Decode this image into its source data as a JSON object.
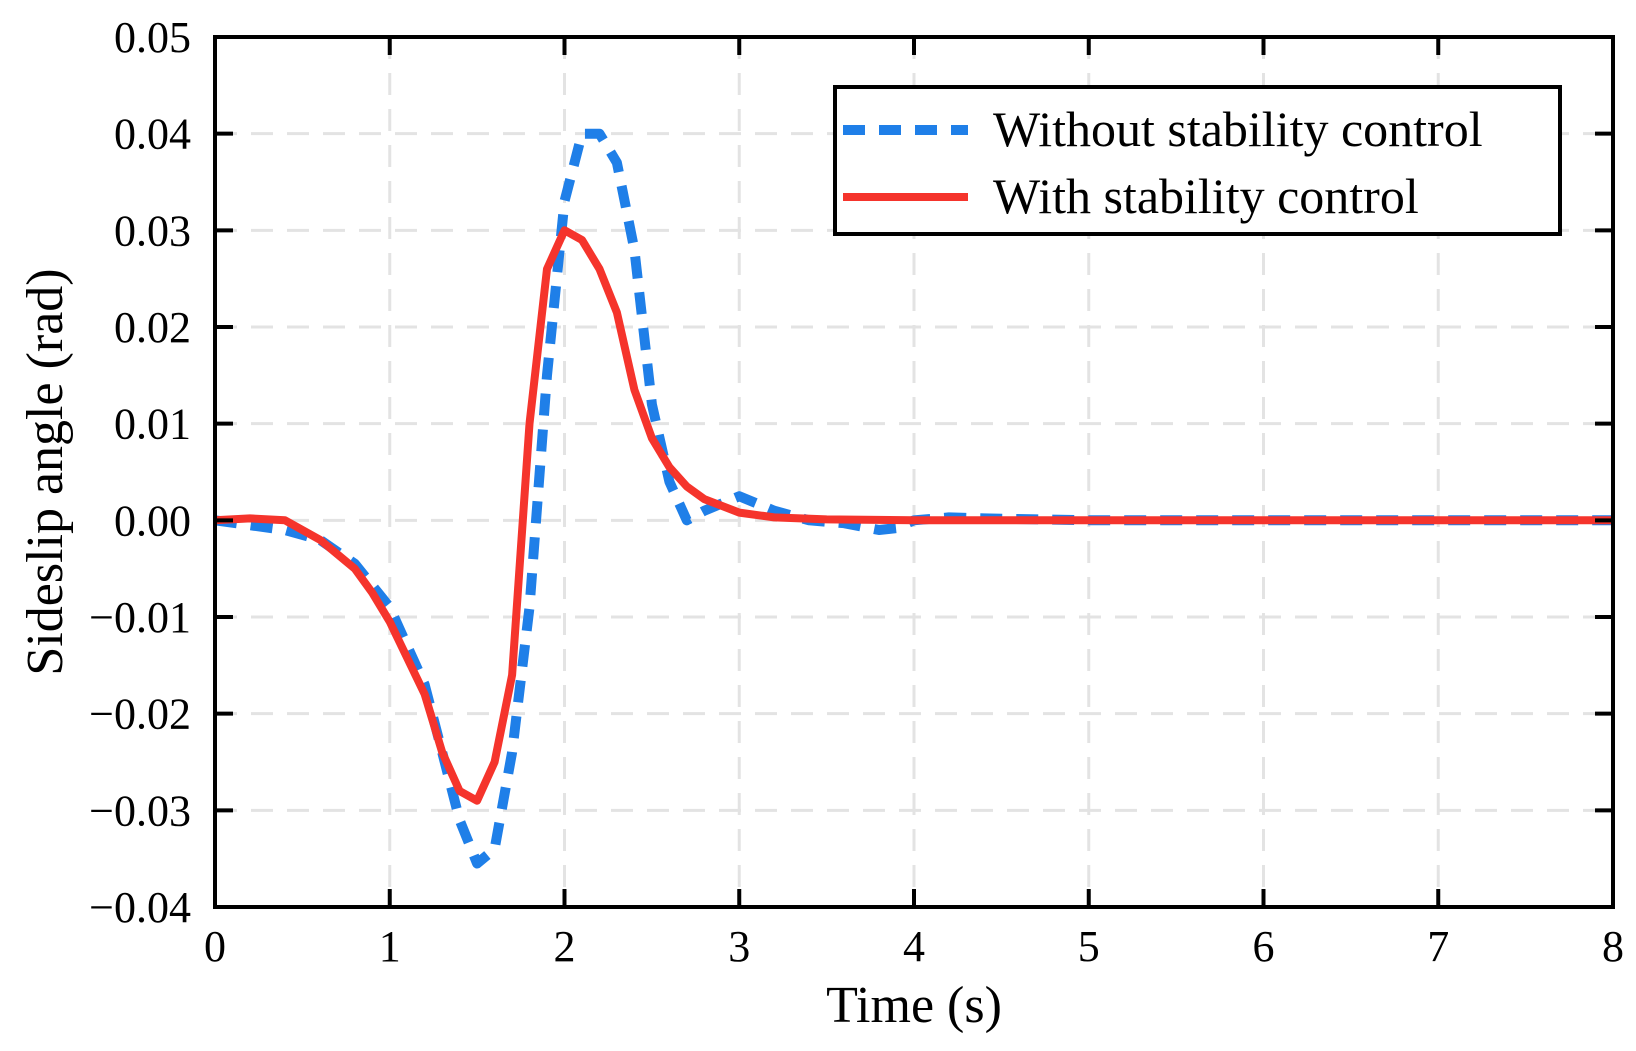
{
  "chart_data": {
    "type": "line",
    "title": "",
    "xlabel": "Time (s)",
    "ylabel": "Sideslip angle (rad)",
    "xlim": [
      0,
      8
    ],
    "ylim": [
      -0.04,
      0.05
    ],
    "x_ticks": [
      0,
      1,
      2,
      3,
      4,
      5,
      6,
      7,
      8
    ],
    "x_tick_labels": [
      "0",
      "1",
      "2",
      "3",
      "4",
      "5",
      "6",
      "7",
      "8"
    ],
    "y_ticks": [
      -0.04,
      -0.03,
      -0.02,
      -0.01,
      0.0,
      0.01,
      0.02,
      0.03,
      0.04,
      0.05
    ],
    "y_tick_labels": [
      "−0.04",
      "−0.03",
      "−0.02",
      "−0.01",
      "0.00",
      "0.01",
      "0.02",
      "0.03",
      "0.04",
      "0.05"
    ],
    "grid": true,
    "legend_position": "top-right",
    "series": [
      {
        "name": "Without stability control",
        "color": "#1f7fe8",
        "style": "dashed",
        "x": [
          0,
          0.2,
          0.4,
          0.6,
          0.8,
          1.0,
          1.2,
          1.3,
          1.4,
          1.5,
          1.6,
          1.7,
          1.8,
          1.9,
          2.0,
          2.1,
          2.2,
          2.3,
          2.4,
          2.5,
          2.6,
          2.7,
          2.8,
          3.0,
          3.2,
          3.4,
          3.6,
          3.8,
          3.9,
          4.0,
          4.2,
          4.4,
          5.0,
          6.0,
          7.0,
          8.0
        ],
        "y": [
          0.0,
          -0.0005,
          -0.001,
          -0.002,
          -0.0045,
          -0.009,
          -0.017,
          -0.024,
          -0.031,
          -0.0355,
          -0.034,
          -0.024,
          -0.009,
          0.015,
          0.033,
          0.04,
          0.04,
          0.037,
          0.028,
          0.012,
          0.004,
          0.0,
          0.001,
          0.0025,
          0.001,
          0.0,
          -0.0003,
          -0.001,
          -0.0008,
          0.0,
          0.0003,
          0.0002,
          0.0,
          0.0,
          0.0,
          0.0
        ]
      },
      {
        "name": "With stability control",
        "color": "#f5342c",
        "style": "solid",
        "x": [
          0,
          0.2,
          0.4,
          0.6,
          0.8,
          0.9,
          1.0,
          1.2,
          1.3,
          1.4,
          1.5,
          1.6,
          1.7,
          1.8,
          1.9,
          2.0,
          2.1,
          2.2,
          2.3,
          2.4,
          2.5,
          2.6,
          2.7,
          2.8,
          3.0,
          3.2,
          3.5,
          4.0,
          5.0,
          6.0,
          7.0,
          8.0
        ],
        "y": [
          0.0,
          0.0002,
          0.0,
          -0.002,
          -0.005,
          -0.0075,
          -0.0105,
          -0.018,
          -0.024,
          -0.028,
          -0.029,
          -0.025,
          -0.016,
          0.01,
          0.026,
          0.03,
          0.029,
          0.026,
          0.0215,
          0.0135,
          0.0085,
          0.0055,
          0.0035,
          0.0022,
          0.0008,
          0.0003,
          0.0001,
          0.0,
          0.0,
          0.0,
          0.0,
          0.0
        ]
      }
    ]
  }
}
